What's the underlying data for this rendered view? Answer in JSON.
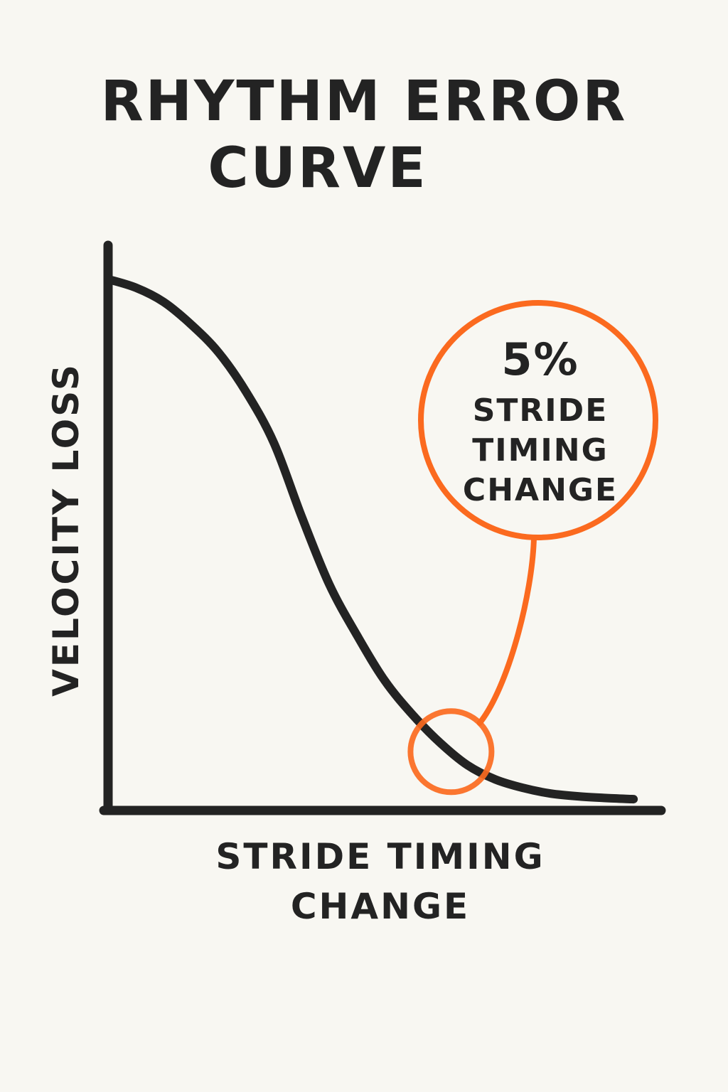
{
  "title_lines": [
    "RHYTHM ERROR",
    "CURVE"
  ],
  "chart_data": {
    "type": "line",
    "title": "RHYTHM ERROR CURVE",
    "xlabel_lines": [
      "STRIDE TIMING",
      "CHANGE"
    ],
    "ylabel": "VELOCITY LOSS",
    "xlim": [
      0,
      1
    ],
    "ylim": [
      0,
      1
    ],
    "grid": false,
    "series": [
      {
        "values_xy": [
          [
            0.0,
            0.94
          ],
          [
            0.05,
            0.925
          ],
          [
            0.1,
            0.9
          ],
          [
            0.15,
            0.86
          ],
          [
            0.2,
            0.81
          ],
          [
            0.25,
            0.74
          ],
          [
            0.3,
            0.65
          ],
          [
            0.35,
            0.52
          ],
          [
            0.4,
            0.4
          ],
          [
            0.45,
            0.31
          ],
          [
            0.5,
            0.23
          ],
          [
            0.55,
            0.17
          ],
          [
            0.6,
            0.12
          ],
          [
            0.65,
            0.08
          ],
          [
            0.7,
            0.055
          ],
          [
            0.75,
            0.04
          ],
          [
            0.8,
            0.03
          ],
          [
            0.85,
            0.025
          ],
          [
            0.9,
            0.022
          ],
          [
            0.95,
            0.02
          ]
        ],
        "color": "#232323"
      }
    ],
    "annotation": {
      "lines": [
        "5%",
        "STRIDE",
        "TIMING",
        "CHANGE"
      ],
      "color": "#fb6a1f",
      "target_x": 0.62
    }
  }
}
